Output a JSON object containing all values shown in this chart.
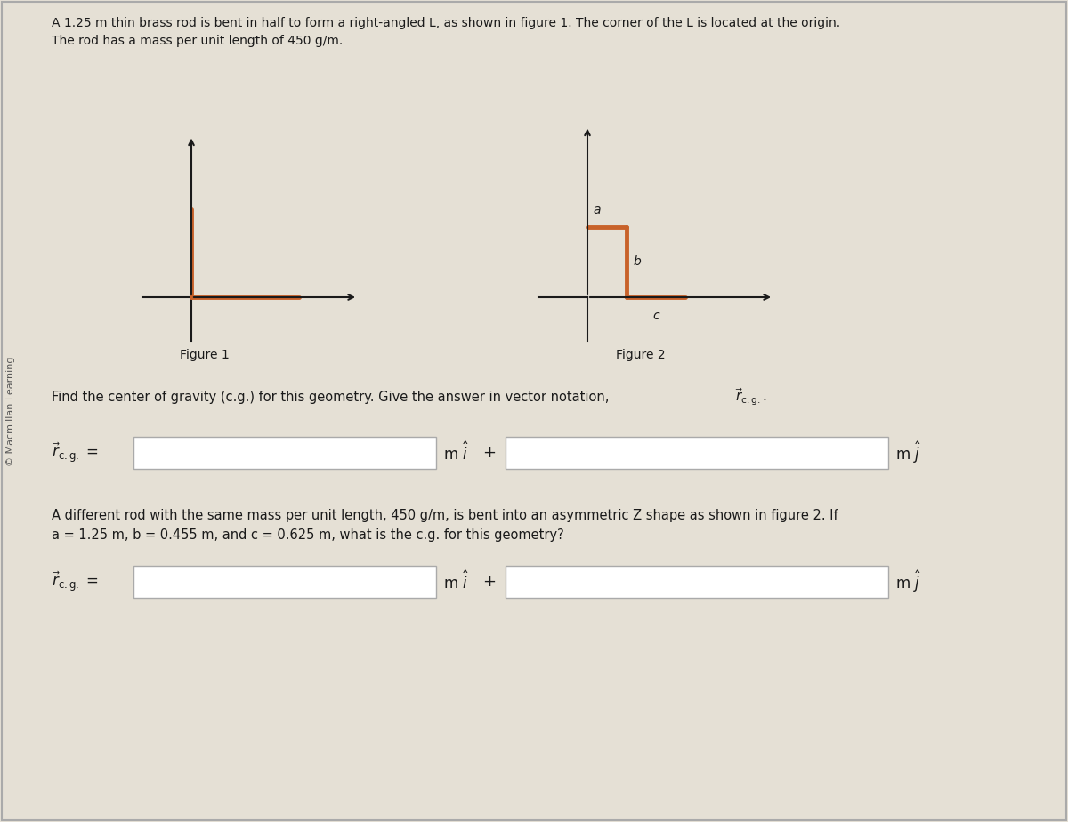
{
  "bg_color": "#e5e0d5",
  "text_color": "#1a1a1a",
  "rod_color": "#c8622a",
  "axis_color": "#1a1a1a",
  "box_color": "#ffffff",
  "box_edge_color": "#aaaaaa",
  "title_line1": "A 1.25 m thin brass rod is bent in half to form a right-angled L, as shown in figure 1. The corner of the L is located at the origin.",
  "title_line2": "The rod has a mass per unit length of 450 g/m.",
  "watermark": "© Macmillan Learning",
  "fig1_label": "Figure 1",
  "fig2_label": "Figure 2",
  "find_text_part1": "Find the center of gravity (c.g.) for this geometry. Give the answer in vector notation, ",
  "paragraph2_line1": "A different rod with the same mass per unit length, 450 g/m, is bent into an asymmetric Z shape as shown in figure 2. If",
  "paragraph2_line2": "a = 1.25 m, b = 0.455 m, and c = 0.625 m, what is the c.g. for this geometry?",
  "label_a": "a",
  "label_b": "b",
  "label_c": "c"
}
